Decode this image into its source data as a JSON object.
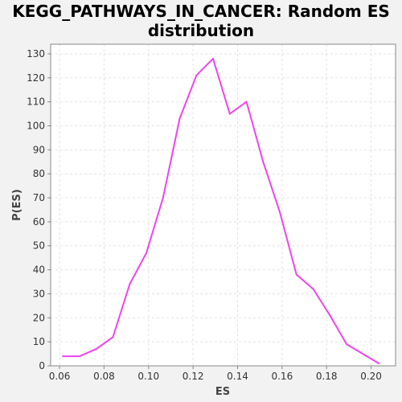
{
  "chart_data": {
    "type": "line",
    "title_line1": "KEGG_PATHWAYS_IN_CANCER: Random ES",
    "title_line2": "distribution",
    "xlabel": "ES",
    "ylabel": "P(ES)",
    "xlim": [
      0.056,
      0.211
    ],
    "ylim": [
      0,
      134
    ],
    "xticks": [
      0.06,
      0.08,
      0.1,
      0.12,
      0.14,
      0.16,
      0.18,
      0.2
    ],
    "xtick_labels": [
      "0.06",
      "0.08",
      "0.10",
      "0.12",
      "0.14",
      "0.16",
      "0.18",
      "0.20"
    ],
    "yticks": [
      0,
      10,
      20,
      30,
      40,
      50,
      60,
      70,
      80,
      90,
      100,
      110,
      120,
      130
    ],
    "ytick_labels": [
      "0",
      "10",
      "20",
      "30",
      "40",
      "50",
      "60",
      "70",
      "80",
      "90",
      "100",
      "110",
      "120",
      "130"
    ],
    "grid": true,
    "line_color": "#ee44ee",
    "series": [
      {
        "x": [
          0.0615,
          0.069,
          0.0765,
          0.084,
          0.0915,
          0.099,
          0.1065,
          0.114,
          0.1215,
          0.129,
          0.1365,
          0.144,
          0.1515,
          0.159,
          0.1665,
          0.174,
          0.1815,
          0.189,
          0.2035
        ],
        "y": [
          4,
          4,
          7,
          12,
          34,
          47,
          70,
          103,
          121,
          128,
          105,
          110,
          85,
          64,
          38,
          32,
          21,
          9,
          1
        ]
      }
    ]
  }
}
